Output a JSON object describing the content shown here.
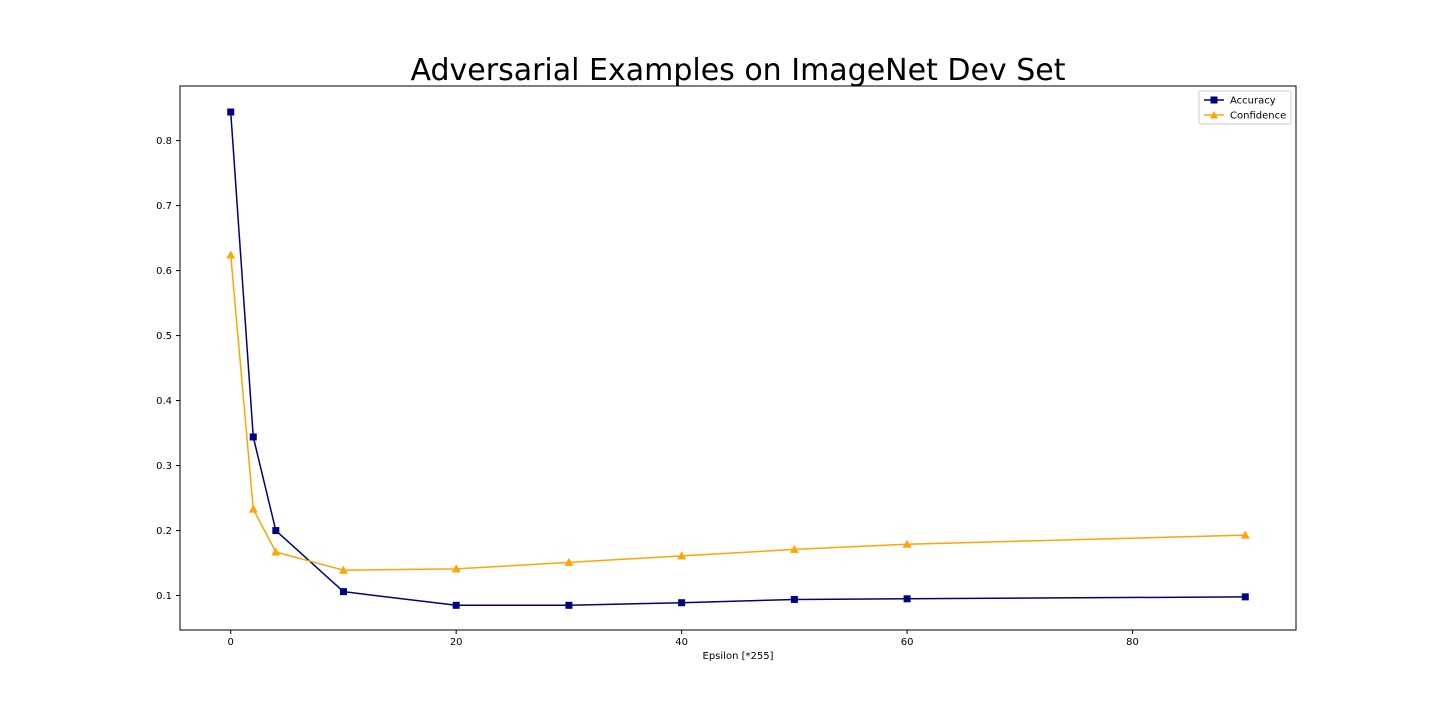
{
  "chart_data": {
    "type": "line",
    "title": "Adversarial Examples on ImageNet Dev Set",
    "xlabel": "Epsilon [*255]",
    "ylabel": "",
    "xlim": [
      -4.5,
      94.5
    ],
    "ylim": [
      0.047,
      0.884
    ],
    "xticks": [
      0,
      20,
      40,
      60,
      80
    ],
    "yticks": [
      0.1,
      0.2,
      0.3,
      0.4,
      0.5,
      0.6,
      0.7,
      0.8
    ],
    "grid": false,
    "legend_position": "top-right",
    "series": [
      {
        "name": "Accuracy",
        "color": "#000080",
        "marker": "square",
        "points": [
          {
            "x": 0,
            "y": 0.844
          },
          {
            "x": 2,
            "y": 0.344
          },
          {
            "x": 4,
            "y": 0.2
          },
          {
            "x": 10,
            "y": 0.106
          },
          {
            "x": 20,
            "y": 0.085
          },
          {
            "x": 30,
            "y": 0.085
          },
          {
            "x": 40,
            "y": 0.089
          },
          {
            "x": 50,
            "y": 0.094
          },
          {
            "x": 60,
            "y": 0.095
          },
          {
            "x": 90,
            "y": 0.098
          }
        ]
      },
      {
        "name": "Confidence",
        "color": "#FFA500",
        "marker": "triangle",
        "points": [
          {
            "x": 0,
            "y": 0.624
          },
          {
            "x": 2,
            "y": 0.233
          },
          {
            "x": 4,
            "y": 0.167
          },
          {
            "x": 10,
            "y": 0.139
          },
          {
            "x": 20,
            "y": 0.141
          },
          {
            "x": 30,
            "y": 0.151
          },
          {
            "x": 40,
            "y": 0.161
          },
          {
            "x": 50,
            "y": 0.171
          },
          {
            "x": 60,
            "y": 0.179
          },
          {
            "x": 90,
            "y": 0.193
          }
        ]
      }
    ]
  }
}
